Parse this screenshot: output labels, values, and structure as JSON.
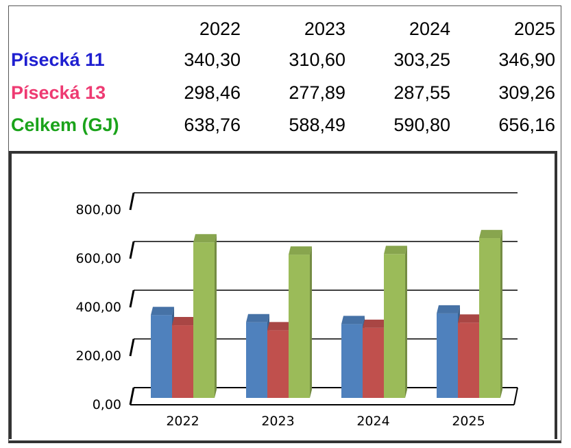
{
  "table": {
    "years": [
      "2022",
      "2023",
      "2024",
      "2025"
    ],
    "rows": [
      {
        "label": "Písecká 11",
        "color": "#1f1fd0",
        "values": [
          "340,30",
          "310,60",
          "303,25",
          "346,90"
        ]
      },
      {
        "label": "Písecká 13",
        "color": "#ee3a72",
        "values": [
          "298,46",
          "277,89",
          "287,55",
          "309,26"
        ]
      },
      {
        "label": "Celkem (GJ)",
        "color": "#1aa31a",
        "values": [
          "638,76",
          "588,49",
          "590,80",
          "656,16"
        ]
      }
    ]
  },
  "chart_data": {
    "type": "bar",
    "categories": [
      "2022",
      "2023",
      "2024",
      "2025"
    ],
    "series": [
      {
        "color": "#4f81bd",
        "values": [
          340.3,
          310.6,
          303.25,
          346.9
        ]
      },
      {
        "color": "#c0504d",
        "values": [
          298.46,
          277.89,
          287.55,
          309.26
        ]
      },
      {
        "color": "#9bbb59",
        "values": [
          638.76,
          588.49,
          590.8,
          656.16
        ]
      }
    ],
    "yticks": [
      "0,00",
      "200,00",
      "400,00",
      "600,00",
      "800,00"
    ],
    "ylim": [
      0,
      800
    ],
    "grid": true,
    "legend": "none"
  }
}
